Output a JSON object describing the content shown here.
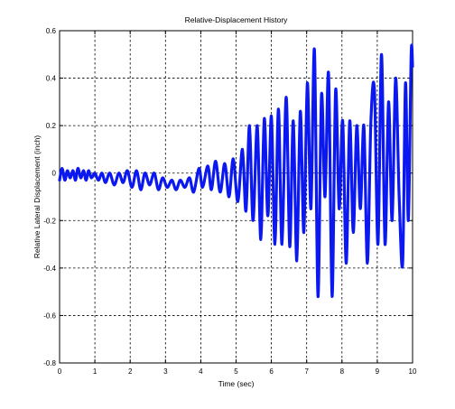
{
  "chart_data": {
    "type": "line",
    "title": "Relative-Displacement History",
    "xlabel": "Time (sec)",
    "ylabel": "Relative Lateral Displacement (inch)",
    "xlim": [
      0,
      10
    ],
    "ylim": [
      -0.8,
      0.6
    ],
    "grid": true,
    "xticks": [
      "0",
      "1",
      "2",
      "3",
      "4",
      "5",
      "6",
      "7",
      "8",
      "9",
      "10"
    ],
    "yticks": [
      "-0.8",
      "-0.6",
      "-0.4",
      "-0.2",
      "0",
      "0.2",
      "0.4",
      "0.6"
    ],
    "line_color": "#0b19f0",
    "series": [
      {
        "x": [
          0,
          0.07,
          0.15,
          0.22,
          0.3,
          0.38,
          0.45,
          0.52,
          0.6,
          0.68,
          0.75,
          0.82,
          0.9,
          1.0,
          1.1,
          1.2,
          1.3,
          1.42,
          1.55,
          1.68,
          1.8,
          1.92,
          2.05,
          2.18,
          2.3,
          2.42,
          2.55,
          2.68,
          2.8,
          2.92,
          3.05,
          3.18,
          3.3,
          3.42,
          3.55,
          3.68,
          3.8,
          3.95,
          4.05,
          4.2,
          4.3,
          4.42,
          4.55,
          4.68,
          4.8,
          4.92,
          5.05,
          5.18,
          5.28,
          5.38,
          5.48,
          5.6,
          5.7,
          5.8,
          5.9,
          6.0,
          6.1,
          6.2,
          6.3,
          6.42,
          6.52,
          6.62,
          6.72,
          6.82,
          6.92,
          7.02,
          7.12,
          7.22,
          7.32,
          7.42,
          7.52,
          7.62,
          7.72,
          7.82,
          7.92,
          8.02,
          8.12,
          8.22,
          8.32,
          8.42,
          8.52,
          8.62,
          8.72,
          8.82,
          8.92,
          9.02,
          9.12,
          9.22,
          9.32,
          9.42,
          9.52,
          9.62,
          9.72,
          9.8,
          9.88,
          9.96,
          10.0
        ],
        "y": [
          -0.03,
          0.02,
          -0.03,
          0.01,
          -0.02,
          0.01,
          -0.03,
          0.02,
          -0.02,
          0.01,
          -0.03,
          0.01,
          -0.02,
          0.0,
          -0.03,
          0.0,
          -0.04,
          0.0,
          -0.05,
          0.0,
          -0.04,
          0.01,
          -0.06,
          0.01,
          -0.07,
          0.0,
          -0.05,
          0.0,
          -0.07,
          -0.02,
          -0.06,
          -0.03,
          -0.07,
          -0.03,
          -0.06,
          -0.02,
          -0.08,
          0.02,
          -0.06,
          0.03,
          -0.07,
          0.05,
          -0.08,
          0.04,
          -0.1,
          0.06,
          -0.12,
          0.1,
          -0.16,
          0.2,
          -0.2,
          0.2,
          -0.28,
          0.23,
          -0.18,
          0.24,
          -0.3,
          0.27,
          -0.3,
          0.32,
          -0.31,
          0.22,
          -0.37,
          0.26,
          -0.25,
          0.38,
          -0.15,
          0.52,
          -0.52,
          0.33,
          -0.1,
          0.42,
          -0.52,
          0.35,
          -0.15,
          0.22,
          -0.38,
          0.22,
          -0.25,
          0.2,
          -0.15,
          0.2,
          -0.38,
          0.22,
          0.35,
          -0.3,
          0.5,
          -0.3,
          0.3,
          -0.2,
          0.4,
          -0.1,
          -0.38,
          0.38,
          -0.2,
          0.5,
          0.45
        ]
      }
    ]
  }
}
